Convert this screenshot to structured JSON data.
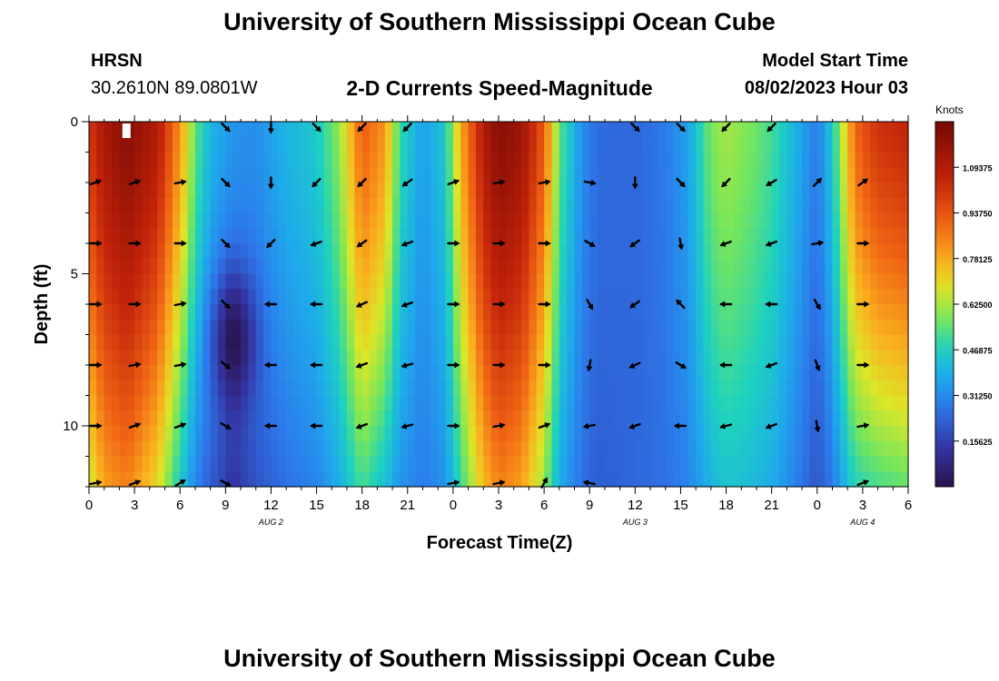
{
  "page": {
    "title": "University of Southern Mississippi Ocean Cube",
    "footer_title": "University of Southern Mississippi Ocean Cube",
    "station": "HRSN",
    "coords": "30.2610N  89.0801W",
    "subtitle": "2-D Currents Speed-Magnitude",
    "model_start_label": "Model Start Time",
    "model_start_value": "08/02/2023 Hour 03"
  },
  "chart_data": {
    "type": "heatmap",
    "title": "2-D Currents Speed-Magnitude",
    "xlabel": "Forecast Time(Z)",
    "ylabel": "Depth (ft)",
    "x_range_hours": [
      0,
      54
    ],
    "y_range_ft": [
      0,
      12
    ],
    "x_ticks": [
      {
        "h": 0,
        "label": "0"
      },
      {
        "h": 3,
        "label": "3"
      },
      {
        "h": 6,
        "label": "6"
      },
      {
        "h": 9,
        "label": "9"
      },
      {
        "h": 12,
        "label": "12"
      },
      {
        "h": 15,
        "label": "15"
      },
      {
        "h": 18,
        "label": "18"
      },
      {
        "h": 21,
        "label": "21"
      },
      {
        "h": 24,
        "label": "0"
      },
      {
        "h": 27,
        "label": "3"
      },
      {
        "h": 30,
        "label": "6"
      },
      {
        "h": 33,
        "label": "9"
      },
      {
        "h": 36,
        "label": "12"
      },
      {
        "h": 39,
        "label": "15"
      },
      {
        "h": 42,
        "label": "18"
      },
      {
        "h": 45,
        "label": "21"
      },
      {
        "h": 48,
        "label": "0"
      },
      {
        "h": 51,
        "label": "3"
      },
      {
        "h": 54,
        "label": "6"
      }
    ],
    "day_labels": [
      {
        "h": 12,
        "label": "AUG 2"
      },
      {
        "h": 36,
        "label": "AUG 3"
      },
      {
        "h": 51,
        "label": "AUG 4"
      }
    ],
    "y_ticks": [
      {
        "depth": 0,
        "label": "0"
      },
      {
        "depth": 5,
        "label": "5"
      },
      {
        "depth": 10,
        "label": "10"
      }
    ],
    "depths_ft": [
      0,
      1,
      2,
      3,
      4,
      5,
      6,
      7,
      8,
      9,
      10,
      11,
      12
    ],
    "colorbar": {
      "unit": "Knots",
      "range": [
        0,
        1.25
      ],
      "labels": [
        "1.09375",
        "0.93750",
        "0.78125",
        "0.62500",
        "0.46875",
        "0.31250",
        "0.15625"
      ],
      "label_values": [
        1.09375,
        0.9375,
        0.78125,
        0.625,
        0.46875,
        0.3125,
        0.15625
      ]
    },
    "speed_profile_knots": [
      {
        "h": 0,
        "surface": 1.0,
        "bottom": 0.65
      },
      {
        "h": 1,
        "surface": 1.12,
        "bottom": 0.8
      },
      {
        "h": 2.5,
        "surface": 1.2,
        "bottom": 0.85
      },
      {
        "h": 4.5,
        "surface": 1.1,
        "bottom": 0.7
      },
      {
        "h": 6,
        "surface": 0.82,
        "bottom": 0.45
      },
      {
        "h": 7,
        "surface": 0.55,
        "bottom": 0.3
      },
      {
        "h": 8,
        "surface": 0.4,
        "bottom": 0.22
      },
      {
        "h": 9.5,
        "surface": 0.33,
        "bottom": 0.12
      },
      {
        "h": 11,
        "surface": 0.32,
        "bottom": 0.2
      },
      {
        "h": 13,
        "surface": 0.4,
        "bottom": 0.26
      },
      {
        "h": 15,
        "surface": 0.45,
        "bottom": 0.3
      },
      {
        "h": 16.5,
        "surface": 0.6,
        "bottom": 0.38
      },
      {
        "h": 18,
        "surface": 0.92,
        "bottom": 0.52
      },
      {
        "h": 19.5,
        "surface": 0.82,
        "bottom": 0.42
      },
      {
        "h": 20.5,
        "surface": 0.5,
        "bottom": 0.33
      },
      {
        "h": 22,
        "surface": 0.35,
        "bottom": 0.28
      },
      {
        "h": 23.5,
        "surface": 0.45,
        "bottom": 0.33
      },
      {
        "h": 24.5,
        "surface": 0.78,
        "bottom": 0.5
      },
      {
        "h": 26,
        "surface": 1.1,
        "bottom": 0.75
      },
      {
        "h": 27,
        "surface": 1.2,
        "bottom": 0.85
      },
      {
        "h": 28.5,
        "surface": 1.15,
        "bottom": 0.8
      },
      {
        "h": 30,
        "surface": 0.92,
        "bottom": 0.6
      },
      {
        "h": 31,
        "surface": 0.55,
        "bottom": 0.38
      },
      {
        "h": 32.5,
        "surface": 0.32,
        "bottom": 0.26
      },
      {
        "h": 33.5,
        "surface": 0.25,
        "bottom": 0.22
      },
      {
        "h": 36,
        "surface": 0.24,
        "bottom": 0.24
      },
      {
        "h": 38,
        "surface": 0.28,
        "bottom": 0.26
      },
      {
        "h": 39.5,
        "surface": 0.36,
        "bottom": 0.3
      },
      {
        "h": 41,
        "surface": 0.58,
        "bottom": 0.4
      },
      {
        "h": 42,
        "surface": 0.62,
        "bottom": 0.44
      },
      {
        "h": 43.5,
        "surface": 0.58,
        "bottom": 0.42
      },
      {
        "h": 45,
        "surface": 0.52,
        "bottom": 0.38
      },
      {
        "h": 46.5,
        "surface": 0.4,
        "bottom": 0.3
      },
      {
        "h": 48,
        "surface": 0.28,
        "bottom": 0.2
      },
      {
        "h": 49,
        "surface": 0.45,
        "bottom": 0.28
      },
      {
        "h": 50.5,
        "surface": 0.9,
        "bottom": 0.48
      },
      {
        "h": 52,
        "surface": 1.02,
        "bottom": 0.52
      },
      {
        "h": 54,
        "surface": 1.05,
        "bottom": 0.55
      }
    ],
    "vector_hours": [
      0,
      3,
      6,
      9,
      12,
      15,
      18,
      21,
      24,
      27,
      30,
      33,
      36,
      39,
      42,
      45,
      48,
      51,
      54
    ],
    "vector_depths_ft": [
      0,
      2,
      4,
      6,
      8,
      10,
      12
    ],
    "vector_rows_deg": [
      [
        null,
        null,
        null,
        135,
        180,
        135,
        225,
        225,
        null,
        null,
        null,
        null,
        135,
        135,
        225,
        225,
        null,
        null,
        null
      ],
      [
        70,
        70,
        80,
        135,
        180,
        225,
        225,
        235,
        70,
        80,
        80,
        100,
        180,
        135,
        225,
        240,
        45,
        55,
        null
      ],
      [
        90,
        90,
        90,
        135,
        225,
        250,
        235,
        250,
        90,
        90,
        90,
        120,
        235,
        170,
        250,
        250,
        80,
        90,
        null
      ],
      [
        90,
        90,
        80,
        135,
        270,
        270,
        245,
        250,
        90,
        90,
        90,
        150,
        235,
        315,
        270,
        270,
        150,
        90,
        null
      ],
      [
        90,
        80,
        80,
        130,
        270,
        270,
        250,
        255,
        90,
        90,
        90,
        190,
        245,
        120,
        270,
        250,
        160,
        90,
        null
      ],
      [
        90,
        70,
        70,
        120,
        270,
        270,
        250,
        255,
        90,
        80,
        70,
        260,
        250,
        270,
        255,
        250,
        170,
        80,
        null
      ],
      [
        80,
        70,
        60,
        120,
        null,
        null,
        null,
        null,
        80,
        80,
        30,
        280,
        null,
        null,
        null,
        null,
        null,
        70,
        null
      ]
    ]
  }
}
